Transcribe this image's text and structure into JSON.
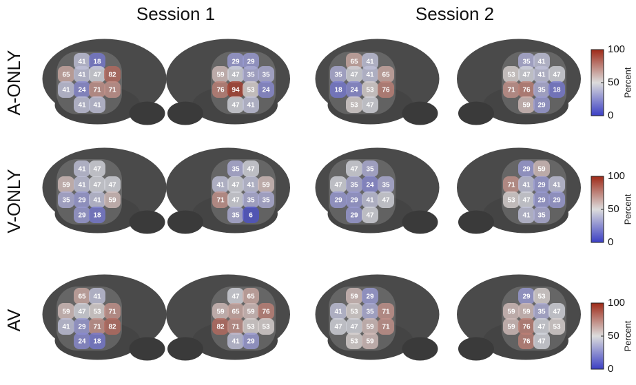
{
  "chart_data": {
    "type": "electrode-map",
    "column_titles": [
      "Session 1",
      "Session 2"
    ],
    "row_labels": [
      "A-ONLY",
      "V-ONLY",
      "AV"
    ],
    "values": [
      [
        [
          41,
          18,
          65,
          41,
          47,
          82,
          41,
          24,
          71,
          71,
          41,
          41
        ],
        [
          29,
          29,
          59,
          47,
          35,
          35,
          76,
          94,
          53,
          24,
          47,
          41
        ],
        [
          65,
          41,
          35,
          47,
          41,
          65,
          18,
          24,
          53,
          76,
          53,
          47
        ],
        [
          35,
          41,
          53,
          47,
          41,
          47,
          71,
          76,
          35,
          18,
          59,
          29
        ]
      ],
      [
        [
          41,
          47,
          59,
          41,
          47,
          47,
          35,
          29,
          41,
          59,
          29,
          18
        ],
        [
          35,
          47,
          41,
          47,
          41,
          59,
          71,
          47,
          35,
          35,
          35,
          6
        ],
        [
          47,
          35,
          47,
          35,
          24,
          35,
          29,
          29,
          41,
          47,
          29,
          47
        ],
        [
          29,
          59,
          71,
          41,
          29,
          41,
          53,
          47,
          29,
          29,
          41,
          35
        ]
      ],
      [
        [
          65,
          41,
          59,
          47,
          53,
          71,
          41,
          29,
          71,
          82,
          24,
          18
        ],
        [
          47,
          65,
          59,
          65,
          59,
          76,
          82,
          71,
          53,
          53,
          41,
          29
        ],
        [
          59,
          29,
          41,
          53,
          35,
          71,
          47,
          47,
          59,
          71,
          53,
          59
        ],
        [
          29,
          53,
          59,
          59,
          35,
          47,
          59,
          76,
          47,
          53,
          76,
          47
        ]
      ]
    ],
    "colorbar": {
      "label": "Percent",
      "lim": [
        0,
        100
      ],
      "ticks": [
        0,
        50,
        100
      ],
      "colors": [
        "#3b3fc4",
        "#dcdcdc",
        "#9e2a18"
      ]
    }
  }
}
